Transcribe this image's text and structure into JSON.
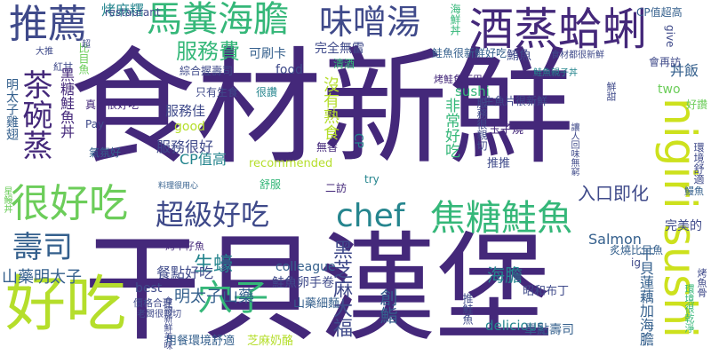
{
  "palette": {
    "dark_purple": "#44287a",
    "indigo": "#3f4a8a",
    "blue": "#35608d",
    "teal": "#25858e",
    "green": "#35b779",
    "light_green": "#6ccd5a",
    "lime": "#b5de2b",
    "yellow_green": "#cde11d"
  },
  "words": [
    {
      "id": "w1",
      "text": "食材新鮮",
      "color": "#44287a"
    },
    {
      "id": "w2",
      "text": "干貝漢堡",
      "color": "#44287a"
    },
    {
      "id": "w3",
      "text": "好吃",
      "color": "#b5de2b"
    },
    {
      "id": "w4",
      "text": "推薦",
      "color": "#3f4a8a"
    },
    {
      "id": "w5",
      "text": "馬糞海膽",
      "color": "#35b779"
    },
    {
      "id": "w6",
      "text": "味噌湯",
      "color": "#3f4a8a"
    },
    {
      "id": "w7",
      "text": "酒蒸蛤蜊",
      "color": "#44287a"
    },
    {
      "id": "w8",
      "text": "服務費",
      "color": "#35b779"
    },
    {
      "id": "w9",
      "text": "很好吃",
      "color": "#6ccd5a"
    },
    {
      "id": "w10",
      "text": "超級好吃",
      "color": "#3f4a8a"
    },
    {
      "id": "w11",
      "text": "chef",
      "color": "#25858e"
    },
    {
      "id": "w12",
      "text": "焦糖鮭魚",
      "color": "#35b779"
    },
    {
      "id": "w13",
      "text": "nigiri sushi",
      "color": "#cde11d"
    },
    {
      "id": "w14",
      "text": "茶碗蒸",
      "color": "#44287a"
    },
    {
      "id": "w15",
      "text": "壽司",
      "color": "#35608d"
    },
    {
      "id": "w16",
      "text": "穴子",
      "color": "#35b779"
    },
    {
      "id": "w17",
      "text": "生蠔",
      "color": "#25858e"
    },
    {
      "id": "w18",
      "text": "山藥明太子",
      "color": "#35608d"
    },
    {
      "id": "w19",
      "text": "明太子山藥",
      "color": "#35608d"
    },
    {
      "id": "w20",
      "text": "入口即化",
      "color": "#3f4a8a"
    },
    {
      "id": "w21",
      "text": "Salmon",
      "color": "#35608d"
    },
    {
      "id": "w22",
      "text": "海膽",
      "color": "#25858e"
    },
    {
      "id": "w23",
      "text": "創鮨",
      "color": "#35608d"
    },
    {
      "id": "w24",
      "text": "餐點好吃",
      "color": "#3f4a8a"
    },
    {
      "id": "w25",
      "text": "best",
      "color": "#3f4a8a"
    },
    {
      "id": "w26",
      "text": "colleague",
      "color": "#35608d"
    },
    {
      "id": "w27",
      "text": "鮭魚卵手卷",
      "color": "#3f4a8a"
    },
    {
      "id": "w28",
      "text": "山藥細麵",
      "color": "#35608d"
    },
    {
      "id": "w29",
      "text": "昭和布丁",
      "color": "#3f4a8a"
    },
    {
      "id": "w30",
      "text": "delicious",
      "color": "#25858e"
    },
    {
      "id": "w31",
      "text": "單點壽司",
      "color": "#35608d"
    },
    {
      "id": "w32",
      "text": "干貝蓮藕加海膽",
      "color": "#35608d"
    },
    {
      "id": "w33",
      "text": "用餐環境舒適",
      "color": "#35608d"
    },
    {
      "id": "w34",
      "text": "芝麻奶酪",
      "color": "#b5de2b"
    },
    {
      "id": "w35",
      "text": "烤麻糬",
      "color": "#25858e"
    },
    {
      "id": "w36",
      "text": "restaurant",
      "color": "#3f4a8a"
    },
    {
      "id": "w37",
      "text": "CP值超高",
      "color": "#35608d"
    },
    {
      "id": "w38",
      "text": "give",
      "color": "#3f4a8a"
    },
    {
      "id": "w39",
      "text": "丼飯",
      "color": "#35608d"
    },
    {
      "id": "w40",
      "text": "可刷卡",
      "color": "#35608d"
    },
    {
      "id": "w41",
      "text": "food",
      "color": "#3f4a8a"
    },
    {
      "id": "w42",
      "text": "sushi",
      "color": "#35b779"
    },
    {
      "id": "w43",
      "text": "two",
      "color": "#6ccd5a"
    },
    {
      "id": "w44",
      "text": "服務佳",
      "color": "#3f4a8a"
    },
    {
      "id": "w45",
      "text": "good",
      "color": "#b5de2b"
    },
    {
      "id": "w46",
      "text": "CP值高",
      "color": "#25858e"
    },
    {
      "id": "w47",
      "text": "推推",
      "color": "#3f4a8a"
    },
    {
      "id": "w48",
      "text": "玉子燒",
      "color": "#44287a"
    },
    {
      "id": "w49",
      "text": "服務很好",
      "color": "#3f4a8a"
    },
    {
      "id": "w50",
      "text": "recommended",
      "color": "#b5de2b"
    },
    {
      "id": "w51",
      "text": "CP",
      "color": "#25858e"
    },
    {
      "id": "w52",
      "text": "生魚片很新鮮",
      "color": "#3f4a8a"
    },
    {
      "id": "w53",
      "text": "真的很好吃",
      "color": "#44287a"
    },
    {
      "id": "w54",
      "text": "Pay",
      "color": "#3f4a8a"
    },
    {
      "id": "w55",
      "text": "氣氛好",
      "color": "#35608d"
    },
    {
      "id": "w56",
      "text": "只有生食",
      "color": "#3f4a8a"
    },
    {
      "id": "w57",
      "text": "很讚",
      "color": "#25858e"
    },
    {
      "id": "w58",
      "text": "無香",
      "color": "#44287a"
    },
    {
      "id": "w59",
      "text": "舒服",
      "color": "#35b779"
    },
    {
      "id": "w60",
      "text": "二訪",
      "color": "#44287a"
    },
    {
      "id": "w61",
      "text": "try",
      "color": "#25858e"
    },
    {
      "id": "w62",
      "text": "完美的",
      "color": "#3f4a8a"
    },
    {
      "id": "w63",
      "text": "ig",
      "color": "#3f4a8a"
    },
    {
      "id": "w64",
      "text": "好讚",
      "color": "#6ccd5a"
    },
    {
      "id": "w65",
      "text": "鮪魚",
      "color": "#3f4a8a"
    },
    {
      "id": "w66",
      "text": "完全無雷",
      "color": "#3f4a8a"
    },
    {
      "id": "w67",
      "text": "大推",
      "color": "#3f4a8a"
    },
    {
      "id": "w68",
      "text": "紅甘",
      "color": "#3f4a8a"
    },
    {
      "id": "w69",
      "text": "比目魚",
      "color": "#6ccd5a"
    },
    {
      "id": "w70",
      "text": "超",
      "color": "#3f4a8a"
    },
    {
      "id": "w71",
      "text": "綜合握壽司",
      "color": "#3f4a8a"
    },
    {
      "id": "w72",
      "text": "鮭魚很新鮮好吃",
      "color": "#35608d"
    },
    {
      "id": "w73",
      "text": "海鮮丼",
      "color": "#35b779"
    },
    {
      "id": "w74",
      "text": "會再訪",
      "color": "#3f4a8a"
    },
    {
      "id": "w75",
      "text": "食材都很新鮮",
      "color": "#3f4a8a"
    },
    {
      "id": "w76",
      "text": "明太子雞翅",
      "color": "#35608d"
    },
    {
      "id": "w77",
      "text": "黑糖鮭魚丼",
      "color": "#44287a"
    },
    {
      "id": "w78",
      "text": "烤鮭魚下巴",
      "color": "#44287a"
    },
    {
      "id": "w79",
      "text": "非常好吃",
      "color": "#35b779"
    },
    {
      "id": "w80",
      "text": "服務很親切",
      "color": "#3f4a8a"
    },
    {
      "id": "w81",
      "text": "沒有熟食",
      "color": "#b5de2b"
    },
    {
      "id": "w82",
      "text": "黑芝麻大福",
      "color": "#3f4a8a"
    },
    {
      "id": "w83",
      "text": "烤午仔魚",
      "color": "#44287a"
    },
    {
      "id": "w84",
      "text": "讓人回味無窮",
      "color": "#3f4a8a"
    },
    {
      "id": "w85",
      "text": "環境舒適",
      "color": "#3f4a8a"
    },
    {
      "id": "w86",
      "text": "炙燒比目魚",
      "color": "#35608d"
    },
    {
      "id": "w87",
      "text": "環境很乾淨",
      "color": "#35b779"
    },
    {
      "id": "w88",
      "text": "烤魚骨",
      "color": "#3f4a8a"
    },
    {
      "id": "w89",
      "text": "價格合理",
      "color": "#3f4a8a"
    },
    {
      "id": "w90",
      "text": "老闆很親切",
      "color": "#3f4a8a"
    },
    {
      "id": "w91",
      "text": "食物新鮮美味",
      "color": "#3f4a8a"
    },
    {
      "id": "w92",
      "text": "料理很用心",
      "color": "#35608d"
    },
    {
      "id": "w93",
      "text": "推鮭魚",
      "color": "#3f4a8a"
    },
    {
      "id": "w94",
      "text": "鮭魚親子丼",
      "color": "#25858e"
    },
    {
      "id": "w95",
      "text": "星鰻丼",
      "color": "#6ccd5a"
    },
    {
      "id": "w96",
      "text": "鰻魚",
      "color": "#35608d"
    },
    {
      "id": "w97",
      "text": "鮮甜",
      "color": "#3f4a8a"
    },
    {
      "id": "w98",
      "text": "清酒",
      "color": "#35b779"
    }
  ]
}
